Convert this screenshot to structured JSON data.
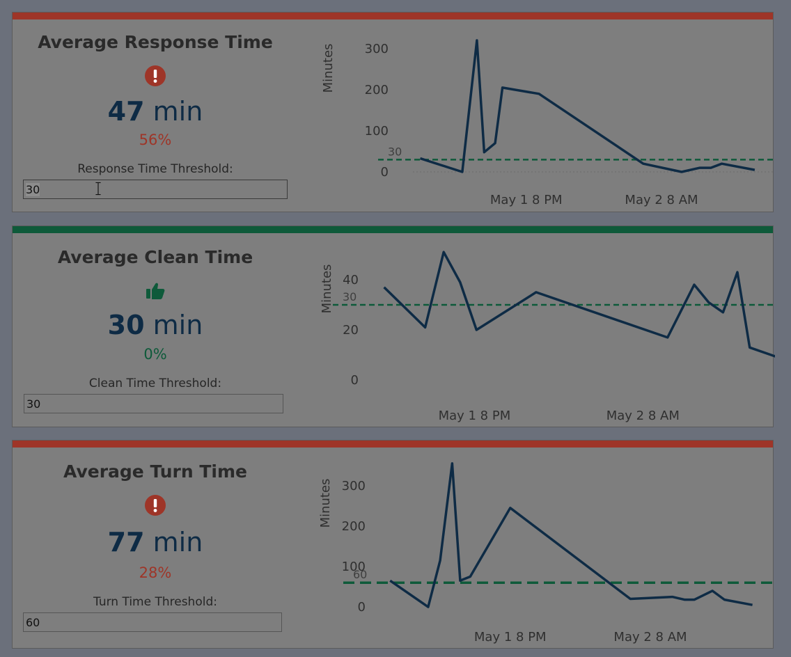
{
  "colors": {
    "bg": "#6b707b",
    "panel": "#7e7e7e",
    "alert_red": "#9e3528",
    "good_green": "#0e5a3a",
    "line_navy": "#0e2b45",
    "ref_green": "#0e5a3a"
  },
  "panels": [
    {
      "title": "Average Response Time",
      "status": "bad",
      "status_icon": "exclamation-circle-icon",
      "value": "47",
      "unit": "min",
      "pct": "56%",
      "threshold_label": "Response Time Threshold:",
      "threshold_value": "30"
    },
    {
      "title": "Average Clean Time",
      "status": "good",
      "status_icon": "thumbs-up-icon",
      "value": "30",
      "unit": "min",
      "pct": "0%",
      "threshold_label": "Clean Time Threshold:",
      "threshold_value": "30"
    },
    {
      "title": "Average Turn Time",
      "status": "bad",
      "status_icon": "exclamation-circle-icon",
      "value": "77",
      "unit": "min",
      "pct": "28%",
      "threshold_label": "Turn Time Threshold:",
      "threshold_value": "60"
    }
  ],
  "chart_data": [
    {
      "type": "line",
      "ylabel": "Minutes",
      "ylim": [
        -5,
        320
      ],
      "yticks": [
        "0",
        "100",
        "200",
        "300"
      ],
      "ytick_values": [
        0,
        100,
        200,
        300
      ],
      "xlim": [
        0,
        1
      ],
      "xtick_labels": [
        "May 1 8 PM",
        "May 2 8 AM"
      ],
      "xtick_values": [
        0.31,
        0.68
      ],
      "reference_line": {
        "value": 30,
        "label": "30"
      },
      "zero_line": true,
      "series": [
        {
          "x": [
            0.02,
            0.135,
            0.175,
            0.195,
            0.225,
            0.245,
            0.345,
            0.63,
            0.735,
            0.785,
            0.815,
            0.845,
            0.935
          ],
          "y": [
            33,
            0,
            320,
            48,
            70,
            205,
            190,
            20,
            0,
            10,
            10,
            20,
            5
          ]
        }
      ]
    },
    {
      "type": "line",
      "ylabel": "Minutes",
      "ylim": [
        -3,
        53
      ],
      "yticks": [
        "0",
        "20",
        "40"
      ],
      "ytick_values": [
        0,
        20,
        40
      ],
      "xlim": [
        0,
        1
      ],
      "xtick_labels": [
        "May 1 8 PM",
        "May 2 8 AM"
      ],
      "xtick_values": [
        0.26,
        0.67
      ],
      "reference_line": {
        "value": 30,
        "label": "30"
      },
      "zero_line": false,
      "series": [
        {
          "x": [
            0.04,
            0.14,
            0.185,
            0.225,
            0.265,
            0.41,
            0.73,
            0.795,
            0.83,
            0.865,
            0.9,
            0.93,
            1.0
          ],
          "y": [
            37,
            21,
            51,
            39,
            20,
            35,
            17,
            38,
            31,
            27,
            43,
            13,
            9
          ]
        }
      ]
    },
    {
      "type": "line",
      "ylabel": "Minutes",
      "ylim": [
        -5,
        360
      ],
      "yticks": [
        "0",
        "100",
        "200",
        "300"
      ],
      "ytick_values": [
        0,
        100,
        200,
        300
      ],
      "xlim": [
        0,
        1
      ],
      "xtick_labels": [
        "May 1 8 PM",
        "May 2 8 AM"
      ],
      "xtick_values": [
        0.33,
        0.68
      ],
      "reference_line": {
        "value": 60,
        "label": "60"
      },
      "zero_line": false,
      "series": [
        {
          "x": [
            0.03,
            0.125,
            0.155,
            0.185,
            0.205,
            0.23,
            0.33,
            0.63,
            0.735,
            0.765,
            0.79,
            0.835,
            0.865,
            0.935
          ],
          "y": [
            65,
            0,
            115,
            355,
            65,
            75,
            245,
            20,
            25,
            18,
            18,
            40,
            18,
            5
          ]
        }
      ]
    }
  ]
}
